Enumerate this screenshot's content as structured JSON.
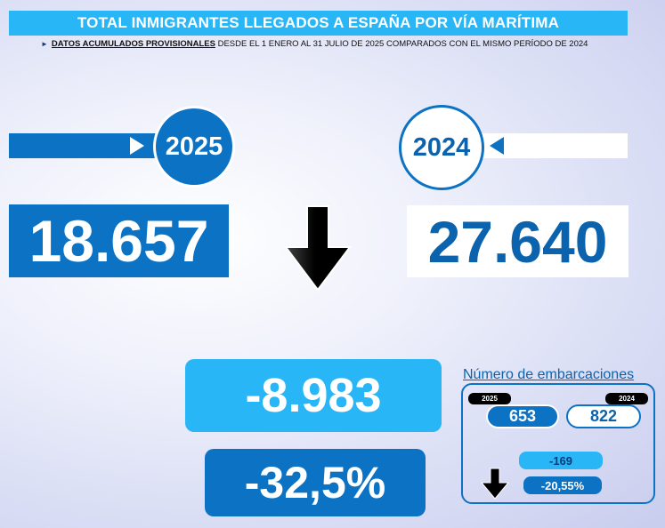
{
  "header": {
    "title": "TOTAL INMIGRANTES LLEGADOS A ESPAÑA POR VÍA MARÍTIMA",
    "subtitle_bullet": "►",
    "subtitle_underlined": "DATOS ACUMULADOS PROVISIONALES",
    "subtitle_rest": " DESDE EL 1 ENERO AL 31 JULIO DE 2025 COMPARADOS CON EL MISMO PERÍODO DE 2024"
  },
  "year_current": {
    "label": "2025",
    "value": "18.657"
  },
  "year_previous": {
    "label": "2024",
    "value": "27.640"
  },
  "difference": {
    "absolute": "-8.983",
    "percent": "-32,5%"
  },
  "boats": {
    "title": "Número de embarcaciones",
    "tag_current": "2025",
    "tag_previous": "2024",
    "value_current": "653",
    "value_previous": "822",
    "difference": "-169",
    "percent": "-20,55%"
  },
  "colors": {
    "primary": "#0b72c4",
    "light": "#29b6f6",
    "arrow": "#000000"
  },
  "icons": {
    "trend": "down-arrow-icon"
  }
}
